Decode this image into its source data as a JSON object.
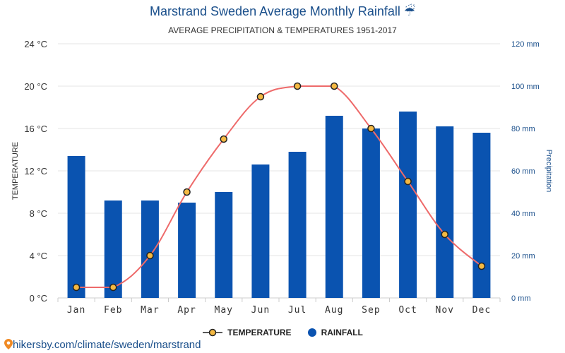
{
  "header": {
    "title": "Marstrand Sweden Average Monthly Rainfall ☔",
    "subtitle": "AVERAGE PRECIPITATION & TEMPERATURES 1951-2017"
  },
  "footer": {
    "url": "hikersby.com/climate/sweden/marstrand",
    "pin_icon": "map-pin-icon"
  },
  "colors": {
    "bar": "#0a53b0",
    "line": "#ee6a6a",
    "marker_fill": "#f5b942",
    "marker_stroke": "#222222",
    "grid": "#e6e6e6",
    "right_axis": "#1a4f8b"
  },
  "chart_data": {
    "type": "bar",
    "categories": [
      "Jan",
      "Feb",
      "Mar",
      "Apr",
      "May",
      "Jun",
      "Jul",
      "Aug",
      "Sep",
      "Oct",
      "Nov",
      "Dec"
    ],
    "series": [
      {
        "name": "TEMPERATURE",
        "type": "line",
        "axis": "left",
        "values": [
          1,
          1,
          4,
          10,
          15,
          19,
          20,
          20,
          16,
          11,
          6,
          3
        ]
      },
      {
        "name": "RAINFALL",
        "type": "bar",
        "axis": "right",
        "values": [
          67,
          46,
          46,
          45,
          50,
          63,
          69,
          86,
          80,
          88,
          81,
          78
        ]
      }
    ],
    "ylabel": "TEMPERATURE",
    "ylabel_right": "Precipitation",
    "ylim": [
      0,
      24
    ],
    "ylim_right": [
      0,
      120
    ],
    "left_ticks": [
      "0 °C",
      "4 °C",
      "8 °C",
      "12 °C",
      "16 °C",
      "20 °C",
      "24 °C"
    ],
    "right_ticks": [
      "0 mm",
      "20 mm",
      "40 mm",
      "60 mm",
      "80 mm",
      "100 mm",
      "120 mm"
    ],
    "grid": true,
    "legend_position": "bottom-center"
  }
}
